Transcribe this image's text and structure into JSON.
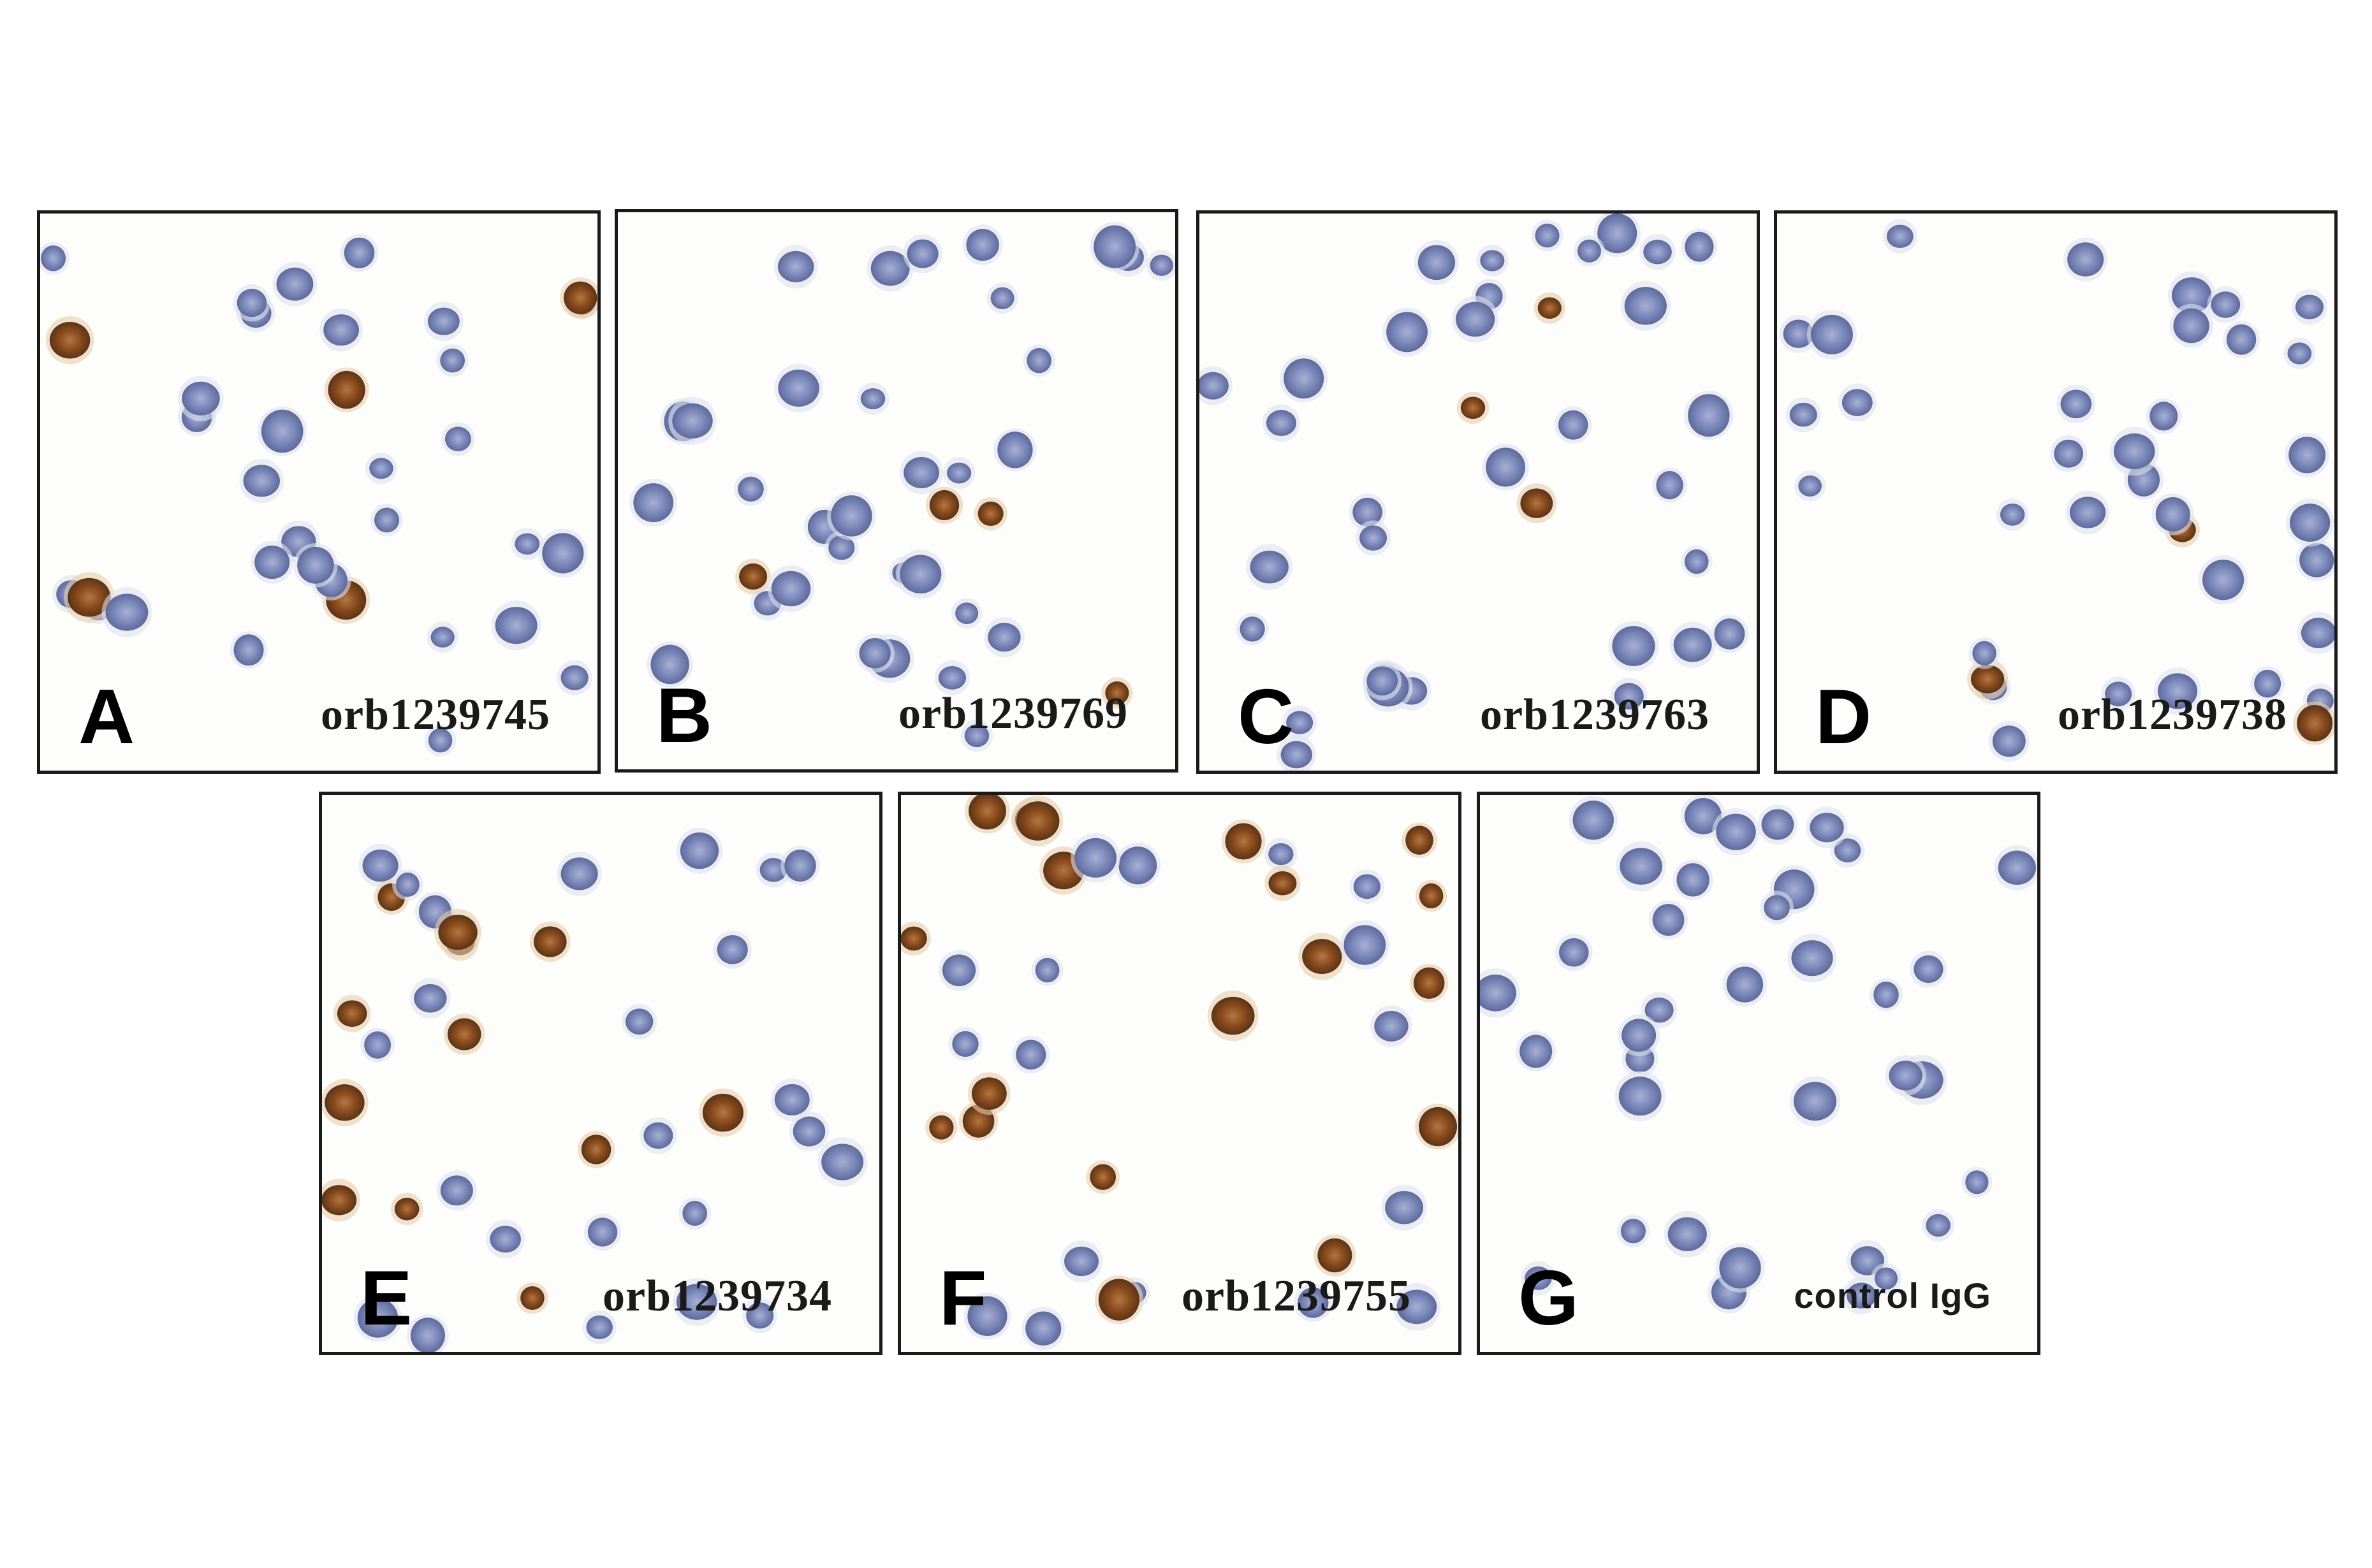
{
  "figure": {
    "panels": [
      {
        "letter": "A",
        "label": "orb1239745",
        "stain": "low"
      },
      {
        "letter": "B",
        "label": "orb1239769",
        "stain": "low"
      },
      {
        "letter": "C",
        "label": "orb1239763",
        "stain": "low"
      },
      {
        "letter": "D",
        "label": "orb1239738",
        "stain": "minimal"
      },
      {
        "letter": "E",
        "label": "orb1239734",
        "stain": "moderate"
      },
      {
        "letter": "F",
        "label": "orb1239755",
        "stain": "moderate"
      },
      {
        "letter": "G",
        "label": "control IgG",
        "stain": "none"
      }
    ]
  },
  "colors": {
    "background": "#ffffff",
    "panel_border": "#1a1a1a",
    "nucleus_blue": "#7a86b8",
    "dab_brown": "#8a4a1c"
  }
}
